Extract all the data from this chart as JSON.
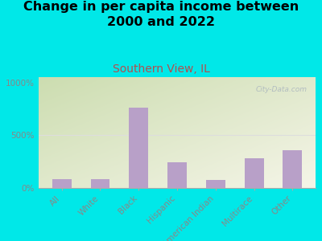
{
  "title": "Change in per capita income between\n2000 and 2022",
  "subtitle": "Southern View, IL",
  "categories": [
    "All",
    "White",
    "Black",
    "Hispanic",
    "American Indian",
    "Multirace",
    "Other"
  ],
  "values": [
    85,
    85,
    760,
    240,
    75,
    280,
    360
  ],
  "bar_color": "#b8a0c8",
  "title_fontsize": 11.5,
  "subtitle_fontsize": 10,
  "subtitle_color": "#b05050",
  "background_outer": "#00e8e8",
  "background_plot_top_left": "#ccddb0",
  "background_plot_bottom_right": "#f5f5e8",
  "ylabel_ticks": [
    "0%",
    "500%",
    "1000%"
  ],
  "ytick_vals": [
    0,
    500,
    1000
  ],
  "ylim": [
    0,
    1050
  ],
  "watermark": "City-Data.com",
  "tick_label_color": "#888888",
  "hline_color": "#dddddd"
}
